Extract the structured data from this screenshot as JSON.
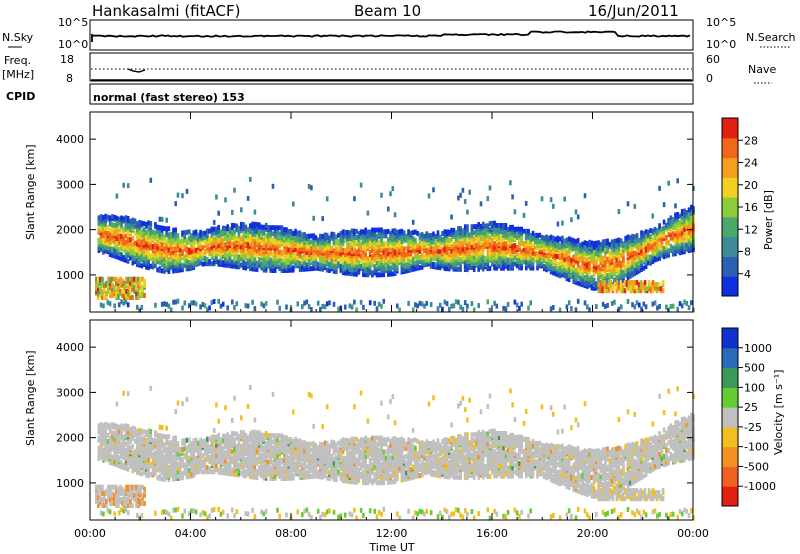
{
  "header": {
    "station": "Hankasalmi (fitACF)",
    "beam": "Beam 10",
    "date": "16/Jun/2011"
  },
  "top_panel": {
    "left_label": "N.Sky",
    "left_ticks": [
      "10^5",
      "10^0"
    ],
    "right_ticks": [
      "10^5",
      "10^0"
    ],
    "right_label": "N.Search"
  },
  "freq_panel": {
    "label_line1": "Freq.",
    "label_line2": "[MHz]",
    "left_ticks": [
      "18",
      "8"
    ],
    "right_ticks": [
      "60",
      "0"
    ],
    "right_label": "Nave"
  },
  "cpid": {
    "label": "CPID",
    "mode": "normal (fast stereo) 153"
  },
  "x_axis": {
    "title": "Time UT",
    "ticks": [
      "00:00",
      "04:00",
      "08:00",
      "12:00",
      "16:00",
      "20:00",
      "00:00"
    ]
  },
  "chart_data": [
    {
      "type": "heatmap",
      "title": "",
      "ylabel": "Slant Range [km]",
      "y_ticks": [
        "1000",
        "2000",
        "3000",
        "4000"
      ],
      "ylim": [
        180,
        4600
      ],
      "xlim_hours": [
        0,
        24
      ],
      "colorbar": {
        "label": "Power [dB]",
        "ticks": [
          "4",
          "8",
          "12",
          "16",
          "20",
          "24",
          "28"
        ],
        "range": [
          0,
          30
        ],
        "colors": [
          "#1030e0",
          "#2b5fb0",
          "#3c8a9a",
          "#4aa86a",
          "#8ccc3a",
          "#f0d020",
          "#f3a020",
          "#f06818",
          "#e02010"
        ]
      },
      "features": [
        {
          "name": "main scatter band",
          "start_range_km": 1900,
          "end_range_km": 2000,
          "midday_range_km": 1500,
          "evening_minimum_km": 1200
        },
        {
          "name": "near-range echoes 00-02 UT",
          "range_km": [
            500,
            900
          ]
        },
        {
          "name": "near-range echoes 20-23 UT",
          "range_km": [
            650,
            850
          ]
        },
        {
          "name": "ground clutter",
          "range_km": [
            200,
            400
          ]
        }
      ]
    },
    {
      "type": "heatmap",
      "title": "",
      "ylabel": "Slant Range [km]",
      "y_ticks": [
        "1000",
        "2000",
        "3000",
        "4000"
      ],
      "ylim": [
        180,
        4600
      ],
      "xlim_hours": [
        0,
        24
      ],
      "colorbar": {
        "label": "Velocity [m s⁻¹]",
        "ticks": [
          "1000",
          "500",
          "100",
          "25",
          "-25",
          "-100",
          "-500",
          "-1000"
        ],
        "colors": [
          "#1030d0",
          "#2b6ab8",
          "#3a9a5a",
          "#66cc33",
          "#c0c0c0",
          "#f0c020",
          "#f39020",
          "#f06020",
          "#e02010"
        ]
      },
      "features": [
        {
          "name": "low-velocity band (grey)",
          "velocity_range_ms": [
            -25,
            25
          ]
        },
        {
          "name": "negative-velocity patches (orange)",
          "velocity_range_ms": [
            -500,
            -100
          ]
        }
      ]
    }
  ]
}
